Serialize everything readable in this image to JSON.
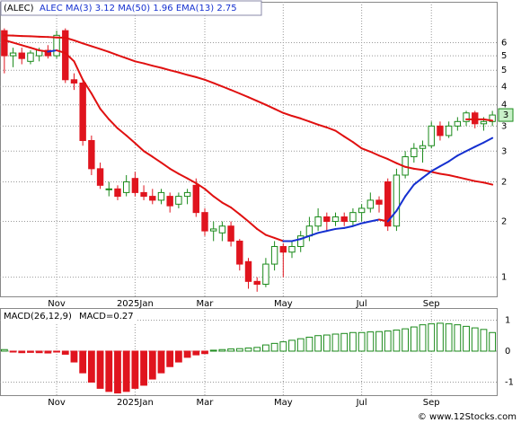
{
  "chart_data": [
    {
      "type": "candlestick",
      "title": "(ALEC)",
      "symbol": "ALEC",
      "log_scale": true,
      "grid": true,
      "xticks": [
        {
          "value": 6,
          "label": "Nov"
        },
        {
          "value": 15,
          "label": "2025Jan"
        },
        {
          "value": 23,
          "label": "Mar"
        },
        {
          "value": 32,
          "label": "May"
        },
        {
          "value": 41,
          "label": "Jul"
        },
        {
          "value": 49,
          "label": "Sep"
        }
      ],
      "ylim": [
        0.87,
        7.4
      ],
      "yticks": [
        {
          "value": 5.5,
          "label": "6"
        },
        5,
        {
          "value": 4.5,
          "label": "5"
        },
        4,
        {
          "value": 3.5,
          "label": "4"
        },
        3,
        {
          "value": 2.5,
          "label": "3"
        },
        2,
        {
          "value": 1.5,
          "label": "2"
        },
        1
      ],
      "up_color": "#1a8a1a",
      "down_color": "#e0141e",
      "open": [
        6.0,
        5.0,
        5.1,
        4.8,
        5.0,
        5.2,
        5.0,
        6.0,
        4.2,
        4.1,
        2.7,
        2.2,
        1.9,
        1.9,
        1.85,
        2.05,
        1.85,
        1.8,
        1.75,
        1.8,
        1.7,
        1.8,
        1.95,
        1.6,
        1.4,
        1.38,
        1.45,
        1.3,
        1.12,
        0.97,
        0.95,
        1.1,
        1.25,
        1.2,
        1.25,
        1.35,
        1.45,
        1.55,
        1.5,
        1.55,
        1.5,
        1.6,
        1.65,
        1.75,
        2.0,
        1.45,
        2.1,
        2.4,
        2.55,
        2.6,
        3.0,
        2.8,
        3.0,
        3.1,
        3.3,
        3.05,
        3.1
      ],
      "high": [
        6.1,
        5.3,
        5.3,
        5.2,
        5.3,
        5.4,
        6.0,
        6.1,
        4.4,
        4.2,
        2.8,
        2.3,
        2.0,
        1.95,
        2.1,
        2.15,
        1.95,
        1.9,
        1.9,
        1.85,
        1.85,
        1.9,
        2.05,
        1.65,
        1.5,
        1.5,
        1.5,
        1.32,
        1.15,
        1.0,
        1.15,
        1.3,
        1.28,
        1.3,
        1.4,
        1.55,
        1.65,
        1.6,
        1.6,
        1.6,
        1.65,
        1.7,
        1.85,
        1.8,
        2.05,
        2.2,
        2.5,
        2.65,
        2.7,
        3.1,
        3.1,
        3.1,
        3.2,
        3.35,
        3.35,
        3.2,
        3.35
      ],
      "low": [
        4.4,
        4.6,
        4.7,
        4.7,
        4.8,
        4.9,
        4.9,
        4.1,
        3.9,
        2.6,
        2.1,
        1.9,
        1.8,
        1.75,
        1.8,
        1.8,
        1.75,
        1.7,
        1.7,
        1.6,
        1.65,
        1.7,
        1.55,
        1.35,
        1.3,
        1.3,
        1.25,
        1.05,
        0.92,
        0.9,
        0.93,
        1.05,
        1.0,
        1.15,
        1.2,
        1.3,
        1.4,
        1.4,
        1.45,
        1.45,
        1.45,
        1.5,
        1.6,
        1.6,
        1.4,
        1.4,
        2.05,
        2.3,
        2.3,
        2.55,
        2.7,
        2.75,
        2.9,
        3.0,
        2.95,
        2.9,
        3.0
      ],
      "close": [
        5.0,
        5.1,
        4.9,
        5.1,
        5.2,
        5.0,
        5.8,
        4.2,
        4.1,
        2.7,
        2.2,
        1.95,
        1.9,
        1.8,
        2.0,
        1.85,
        1.8,
        1.75,
        1.85,
        1.68,
        1.8,
        1.85,
        1.6,
        1.4,
        1.42,
        1.45,
        1.3,
        1.1,
        0.97,
        0.95,
        1.1,
        1.25,
        1.2,
        1.25,
        1.35,
        1.45,
        1.55,
        1.5,
        1.55,
        1.5,
        1.6,
        1.65,
        1.75,
        1.7,
        1.45,
        2.1,
        2.4,
        2.55,
        2.6,
        3.0,
        2.8,
        3.0,
        3.1,
        3.3,
        3.05,
        3.1,
        3.25
      ],
      "last_price": {
        "value": 3.25,
        "label": "3"
      },
      "lines": [
        {
          "name": "MA(3)",
          "value": 3.12,
          "color": "#e01010",
          "values": [
            null,
            null,
            null,
            null,
            null,
            null,
            null,
            null,
            null,
            null,
            null,
            null,
            null,
            null,
            null,
            null,
            null,
            null,
            null,
            null,
            null,
            null,
            null,
            null,
            null,
            null,
            null,
            null,
            null,
            null,
            null,
            null,
            null,
            null,
            null,
            null,
            null,
            null,
            null,
            null,
            null,
            null,
            null,
            null,
            null,
            null,
            null,
            null,
            null,
            null,
            null,
            null,
            null,
            3.15,
            3.15,
            3.15,
            3.12
          ]
        },
        {
          "name": "MA(50)",
          "value": 1.96,
          "color": "#e01010",
          "values": [
            5.8,
            5.79,
            5.77,
            5.76,
            5.74,
            5.73,
            5.71,
            5.7,
            5.59,
            5.47,
            5.36,
            5.25,
            5.14,
            5.02,
            4.91,
            4.8,
            4.73,
            4.65,
            4.58,
            4.5,
            4.43,
            4.35,
            4.28,
            4.2,
            4.1,
            4.0,
            3.9,
            3.8,
            3.7,
            3.6,
            3.5,
            3.4,
            3.3,
            3.23,
            3.17,
            3.1,
            3.03,
            2.97,
            2.9,
            2.78,
            2.67,
            2.55,
            2.49,
            2.42,
            2.36,
            2.29,
            2.23,
            2.2,
            2.18,
            2.15,
            2.12,
            2.1,
            2.07,
            2.04,
            2.01,
            1.99,
            1.96
          ]
        },
        {
          "name": "EMA(13)",
          "value": 2.75,
          "color": "#1530d0",
          "down_color": "#e01010",
          "values": [
            5.6,
            5.5,
            5.4,
            5.3,
            5.2,
            5.15,
            5.2,
            5.1,
            4.8,
            4.2,
            3.8,
            3.4,
            3.15,
            2.95,
            2.8,
            2.65,
            2.5,
            2.4,
            2.3,
            2.2,
            2.12,
            2.05,
            1.98,
            1.9,
            1.8,
            1.72,
            1.66,
            1.58,
            1.5,
            1.42,
            1.36,
            1.33,
            1.3,
            1.3,
            1.32,
            1.35,
            1.38,
            1.4,
            1.42,
            1.43,
            1.45,
            1.48,
            1.5,
            1.52,
            1.5,
            1.62,
            1.8,
            1.96,
            2.06,
            2.16,
            2.24,
            2.32,
            2.42,
            2.5,
            2.58,
            2.66,
            2.75
          ]
        }
      ]
    },
    {
      "type": "bar",
      "title": "MACD(26,12,9)",
      "subtitle": "MACD=0.27",
      "ylim": [
        -1.42,
        1.39
      ],
      "yticks": [
        1,
        0,
        -1
      ],
      "grid": true,
      "up_color": "#1a8a1a",
      "down_color": "#e0141e",
      "values": [
        0.05,
        -0.03,
        -0.05,
        -0.04,
        -0.05,
        -0.06,
        -0.03,
        -0.1,
        -0.35,
        -0.7,
        -1.0,
        -1.2,
        -1.3,
        -1.35,
        -1.3,
        -1.2,
        -1.1,
        -0.9,
        -0.7,
        -0.5,
        -0.35,
        -0.2,
        -0.12,
        -0.08,
        0.03,
        0.05,
        0.07,
        0.08,
        0.1,
        0.12,
        0.2,
        0.25,
        0.3,
        0.35,
        0.4,
        0.45,
        0.5,
        0.52,
        0.55,
        0.57,
        0.6,
        0.6,
        0.62,
        0.63,
        0.65,
        0.68,
        0.72,
        0.78,
        0.85,
        0.88,
        0.9,
        0.88,
        0.85,
        0.8,
        0.75,
        0.7,
        0.6
      ]
    }
  ],
  "footer": "© www.12Stocks.com"
}
